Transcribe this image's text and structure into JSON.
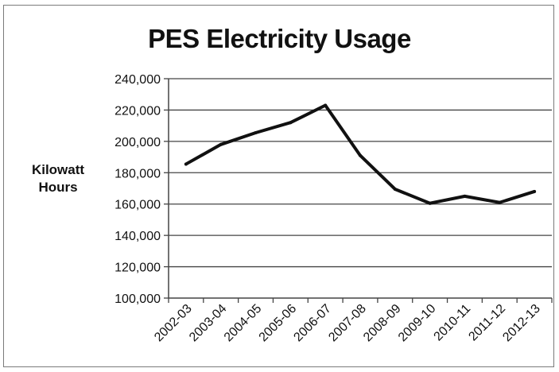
{
  "title": "PES Electricity Usage",
  "ylabel_lines": [
    "Kilowatt",
    "Hours"
  ],
  "chart_data": {
    "type": "line",
    "title": "PES Electricity Usage",
    "xlabel": "",
    "ylabel": "Kilowatt Hours",
    "categories": [
      "2002-03",
      "2003-04",
      "2004-05",
      "2005-06",
      "2006-07",
      "2007-08",
      "2008-09",
      "2009-10",
      "2010-11",
      "2011-12",
      "2012-13"
    ],
    "series": [
      {
        "values": [
          185500,
          198000,
          205500,
          212000,
          223000,
          191000,
          169500,
          160500,
          165000,
          161000,
          168000
        ]
      }
    ],
    "ylim": [
      100000,
      240000
    ],
    "yticks": [
      100000,
      120000,
      140000,
      160000,
      180000,
      200000,
      220000,
      240000
    ],
    "ytick_labels": [
      "100,000",
      "120,000",
      "140,000",
      "160,000",
      "180,000",
      "200,000",
      "220,000",
      "240,000"
    ],
    "grid": true,
    "legend": "none",
    "colors": {
      "line": "#111111",
      "grid": "#444444",
      "text": "#111111"
    }
  }
}
